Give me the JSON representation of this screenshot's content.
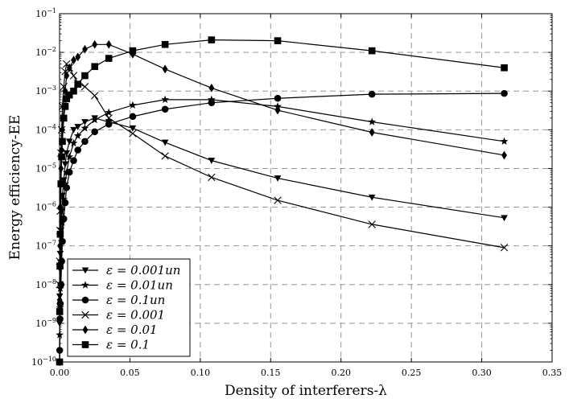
{
  "chart_data": {
    "type": "line",
    "xlabel": "Density of interferers-λ",
    "ylabel": "Energy efficiency-EE",
    "xlim": [
      0,
      0.35
    ],
    "ylim_exponent": [
      -10,
      -1
    ],
    "yscale": "log",
    "grid": true,
    "legend_position": "lower-left",
    "x_ticks": [
      "0.00",
      "0.05",
      "0.10",
      "0.15",
      "0.20",
      "0.25",
      "0.30",
      "0.35"
    ],
    "y_ticks": [
      {
        "base": "10",
        "exp": "−10"
      },
      {
        "base": "10",
        "exp": "−9"
      },
      {
        "base": "10",
        "exp": "−8"
      },
      {
        "base": "10",
        "exp": "−7"
      },
      {
        "base": "10",
        "exp": "−6"
      },
      {
        "base": "10",
        "exp": "−5"
      },
      {
        "base": "10",
        "exp": "−4"
      },
      {
        "base": "10",
        "exp": "−3"
      },
      {
        "base": "10",
        "exp": "−2"
      },
      {
        "base": "10",
        "exp": "−1"
      }
    ],
    "x": [
      1e-05,
      0.0001,
      0.0003,
      0.0005,
      0.001,
      0.0015,
      0.002,
      0.003,
      0.004,
      0.005,
      0.007,
      0.01,
      0.013,
      0.018,
      0.025,
      0.035,
      0.052,
      0.075,
      0.108,
      0.155,
      0.222,
      0.316
    ],
    "series": [
      {
        "name": "ε = 0.001un",
        "marker": "triangle-down",
        "values": [
          1e-09,
          5e-09,
          2.5e-08,
          6.3e-08,
          2.5e-07,
          7.9e-07,
          2e-06,
          5e-06,
          1.3e-05,
          2.5e-05,
          5e-05,
          0.0001,
          0.00012,
          0.00016,
          0.0002,
          0.00016,
          0.00011,
          4.7e-05,
          1.6e-05,
          5.6e-06,
          1.8e-06,
          5.3e-07
        ]
      },
      {
        "name": "ε = 0.01un",
        "marker": "star",
        "values": [
          1e-10,
          5e-10,
          2.5e-09,
          7.9e-09,
          4e-08,
          1.3e-07,
          4e-07,
          1.6e-06,
          4e-06,
          7.9e-06,
          2e-05,
          4.5e-05,
          7e-05,
          0.00011,
          0.00018,
          0.00028,
          0.00043,
          0.0006,
          0.0006,
          0.0004,
          0.00016,
          5e-05
        ]
      },
      {
        "name": "ε = 0.1un",
        "marker": "circle",
        "values": [
          1e-10,
          2e-10,
          1.3e-09,
          3.2e-09,
          1e-08,
          4e-08,
          1.3e-07,
          5e-07,
          1.3e-06,
          3.2e-06,
          8e-06,
          1.6e-05,
          3e-05,
          5e-05,
          8.9e-05,
          0.00014,
          0.00022,
          0.00034,
          0.0005,
          0.00065,
          0.00083,
          0.00087
        ]
      },
      {
        "name": "ε = 0.001",
        "marker": "x",
        "values": [
          1e-08,
          4e-08,
          2.5e-07,
          7.9e-07,
          2.5e-05,
          0.0001,
          0.0004,
          0.0013,
          0.0032,
          0.005,
          0.004,
          0.0025,
          0.0016,
          0.0013,
          0.00076,
          0.0002,
          8e-05,
          2.1e-05,
          5.9e-06,
          1.5e-06,
          3.6e-07,
          9e-08
        ]
      },
      {
        "name": "ε = 0.01",
        "marker": "diamond",
        "values": [
          1e-10,
          4e-09,
          1e-07,
          1e-06,
          1e-05,
          3e-05,
          0.0001,
          0.0004,
          0.001,
          0.0025,
          0.004,
          0.0063,
          0.0076,
          0.012,
          0.016,
          0.016,
          0.009,
          0.0037,
          0.0012,
          0.00032,
          8.6e-05,
          2.2e-05
        ]
      },
      {
        "name": "ε = 0.1",
        "marker": "square",
        "values": [
          1e-10,
          2e-09,
          3e-08,
          2e-07,
          4e-06,
          2e-05,
          5e-05,
          0.0002,
          0.0004,
          0.00063,
          0.00079,
          0.001,
          0.0015,
          0.0025,
          0.0043,
          0.007,
          0.011,
          0.016,
          0.021,
          0.02,
          0.011,
          0.004
        ]
      }
    ]
  }
}
